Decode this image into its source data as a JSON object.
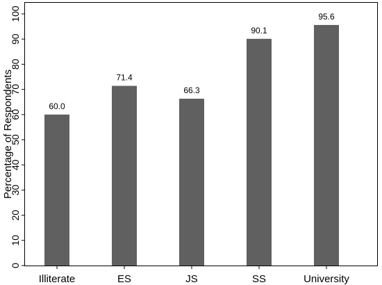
{
  "chart_data": {
    "type": "bar",
    "categories": [
      "Illiterate",
      "ES",
      "JS",
      "SS",
      "University"
    ],
    "values": [
      60.0,
      71.4,
      66.3,
      90.1,
      95.6
    ],
    "data_labels": [
      "60.0",
      "71.4",
      "66.3",
      "90.1",
      "95.6"
    ],
    "title": "",
    "xlabel": "",
    "ylabel": "Percentage of Respondents",
    "ylim": [
      0,
      100
    ],
    "yticks": [
      0,
      10,
      20,
      30,
      40,
      50,
      60,
      70,
      80,
      90,
      100
    ],
    "grid": false,
    "legend": "none",
    "bar_color": "#606060"
  }
}
